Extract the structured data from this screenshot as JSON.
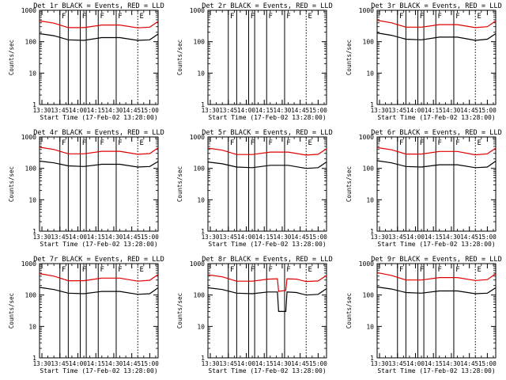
{
  "colors": {
    "events": "#000000",
    "lld": "#e00000",
    "axis": "#000000",
    "background": "#ffffff"
  },
  "markers": [
    "F",
    "F",
    "F",
    "F",
    "E"
  ],
  "chart_data": [
    {
      "type": "line",
      "title": "Det 1r BLACK = Events, RED = LLD",
      "xlabel": "Start Time (17-Feb-02 13:28:00)",
      "ylabel": "Counts/sec",
      "yscale": "log",
      "ylim": [
        1,
        1000
      ],
      "xlim": [
        "13:28",
        "15:07"
      ],
      "x_ticks": [
        "13:30",
        "13:45",
        "14:00",
        "14:15",
        "14:30",
        "14:45",
        "15:00"
      ],
      "y_ticks": [
        "1",
        "10",
        "100",
        "1000"
      ],
      "vlines_solid": [
        "13:45",
        "13:52",
        "14:02",
        "14:07",
        "14:17",
        "14:32"
      ],
      "vlines_dotted": [
        "14:50"
      ],
      "series": [
        {
          "name": "BLACK = Events",
          "x": [
            "13:28",
            "13:40",
            "13:52",
            "14:05",
            "14:20",
            "14:35",
            "14:50",
            "15:00",
            "15:07"
          ],
          "y": [
            180,
            155,
            115,
            110,
            135,
            135,
            110,
            115,
            175
          ]
        },
        {
          "name": "RED = LLD",
          "x": [
            "13:28",
            "13:40",
            "13:52",
            "14:05",
            "14:20",
            "14:35",
            "14:50",
            "15:00",
            "15:07"
          ],
          "y": [
            460,
            390,
            280,
            280,
            340,
            340,
            275,
            290,
            440
          ]
        }
      ]
    },
    {
      "type": "line",
      "title": "Det 2r BLACK = Events, RED = LLD",
      "xlabel": "Start Time (17-Feb-02 13:28:00)",
      "ylabel": "Counts/sec",
      "yscale": "log",
      "ylim": [
        1,
        1000
      ],
      "xlim": [
        "13:28",
        "15:07"
      ],
      "x_ticks": [
        "13:30",
        "13:45",
        "14:00",
        "14:15",
        "14:30",
        "14:45",
        "15:00"
      ],
      "y_ticks": [
        "1",
        "10",
        "100",
        "1000"
      ],
      "vlines_solid": [
        "13:45",
        "13:52",
        "14:02",
        "14:07",
        "14:17",
        "14:32"
      ],
      "vlines_dotted": [
        "14:50"
      ],
      "series": []
    },
    {
      "type": "line",
      "title": "Det 3r BLACK = Events, RED = LLD",
      "xlabel": "Start Time (17-Feb-02 13:28:00)",
      "ylabel": "Counts/sec",
      "yscale": "log",
      "ylim": [
        1,
        1000
      ],
      "xlim": [
        "13:28",
        "15:07"
      ],
      "x_ticks": [
        "13:30",
        "13:45",
        "14:00",
        "14:15",
        "14:30",
        "14:45",
        "15:00"
      ],
      "y_ticks": [
        "1",
        "10",
        "100",
        "1000"
      ],
      "vlines_solid": [
        "13:45",
        "13:52",
        "14:02",
        "14:07",
        "14:17",
        "14:32"
      ],
      "vlines_dotted": [
        "14:50"
      ],
      "series": [
        {
          "name": "BLACK = Events",
          "x": [
            "13:28",
            "13:40",
            "13:52",
            "14:05",
            "14:20",
            "14:35",
            "14:50",
            "15:00",
            "15:07"
          ],
          "y": [
            190,
            160,
            120,
            115,
            140,
            140,
            110,
            120,
            180
          ]
        },
        {
          "name": "RED = LLD",
          "x": [
            "13:28",
            "13:40",
            "13:52",
            "14:05",
            "14:20",
            "14:35",
            "14:50",
            "15:00",
            "15:07"
          ],
          "y": [
            480,
            400,
            290,
            290,
            350,
            350,
            280,
            300,
            460
          ]
        }
      ]
    },
    {
      "type": "line",
      "title": "Det 4r BLACK = Events, RED = LLD",
      "xlabel": "Start Time (17-Feb-02 13:28:00)",
      "ylabel": "Counts/sec",
      "yscale": "log",
      "ylim": [
        1,
        1000
      ],
      "xlim": [
        "13:28",
        "15:07"
      ],
      "x_ticks": [
        "13:30",
        "13:45",
        "14:00",
        "14:15",
        "14:30",
        "14:45",
        "15:00"
      ],
      "y_ticks": [
        "1",
        "10",
        "100",
        "1000"
      ],
      "vlines_solid": [
        "13:45",
        "13:52",
        "14:02",
        "14:07",
        "14:17",
        "14:32"
      ],
      "vlines_dotted": [
        "14:50"
      ],
      "series": [
        {
          "name": "BLACK = Events",
          "x": [
            "13:28",
            "13:40",
            "13:52",
            "14:05",
            "14:20",
            "14:35",
            "14:50",
            "15:00",
            "15:07"
          ],
          "y": [
            170,
            150,
            120,
            115,
            135,
            135,
            110,
            115,
            165
          ]
        },
        {
          "name": "RED = LLD",
          "x": [
            "13:28",
            "13:40",
            "13:52",
            "14:05",
            "14:20",
            "14:35",
            "14:50",
            "15:00",
            "15:07"
          ],
          "y": [
            470,
            400,
            290,
            290,
            350,
            350,
            280,
            295,
            450
          ]
        }
      ]
    },
    {
      "type": "line",
      "title": "Det 5r BLACK = Events, RED = LLD",
      "xlabel": "Start Time (17-Feb-02 13:28:00)",
      "ylabel": "Counts/sec",
      "yscale": "log",
      "ylim": [
        1,
        1000
      ],
      "xlim": [
        "13:28",
        "15:07"
      ],
      "x_ticks": [
        "13:30",
        "13:45",
        "14:00",
        "14:15",
        "14:30",
        "14:45",
        "15:00"
      ],
      "y_ticks": [
        "1",
        "10",
        "100",
        "1000"
      ],
      "vlines_solid": [
        "13:45",
        "13:52",
        "14:02",
        "14:07",
        "14:17",
        "14:32"
      ],
      "vlines_dotted": [
        "14:50"
      ],
      "series": [
        {
          "name": "BLACK = Events",
          "x": [
            "13:28",
            "13:40",
            "13:52",
            "14:05",
            "14:20",
            "14:35",
            "14:50",
            "15:00",
            "15:07"
          ],
          "y": [
            160,
            140,
            110,
            105,
            125,
            125,
            100,
            105,
            160
          ]
        },
        {
          "name": "RED = LLD",
          "x": [
            "13:28",
            "13:40",
            "13:52",
            "14:05",
            "14:20",
            "14:35",
            "14:50",
            "15:00",
            "15:07"
          ],
          "y": [
            440,
            380,
            275,
            275,
            330,
            330,
            265,
            280,
            420
          ]
        }
      ]
    },
    {
      "type": "line",
      "title": "Det 6r BLACK = Events, RED = LLD",
      "xlabel": "Start Time (17-Feb-02 13:28:00)",
      "ylabel": "Counts/sec",
      "yscale": "log",
      "ylim": [
        1,
        1000
      ],
      "xlim": [
        "13:28",
        "15:07"
      ],
      "x_ticks": [
        "13:30",
        "13:45",
        "14:00",
        "14:15",
        "14:30",
        "14:45",
        "15:00"
      ],
      "y_ticks": [
        "1",
        "10",
        "100",
        "1000"
      ],
      "vlines_solid": [
        "13:45",
        "13:52",
        "14:02",
        "14:07",
        "14:17",
        "14:32"
      ],
      "vlines_dotted": [
        "14:50"
      ],
      "series": [
        {
          "name": "BLACK = Events",
          "x": [
            "13:28",
            "13:40",
            "13:52",
            "14:05",
            "14:20",
            "14:35",
            "14:50",
            "15:00",
            "15:07"
          ],
          "y": [
            175,
            150,
            115,
            110,
            130,
            130,
            105,
            110,
            170
          ]
        },
        {
          "name": "RED = LLD",
          "x": [
            "13:28",
            "13:40",
            "13:52",
            "14:05",
            "14:20",
            "14:35",
            "14:50",
            "15:00",
            "15:07"
          ],
          "y": [
            460,
            390,
            285,
            285,
            345,
            345,
            270,
            290,
            440
          ]
        }
      ]
    },
    {
      "type": "line",
      "title": "Det 7r BLACK = Events, RED = LLD",
      "xlabel": "Start Time (17-Feb-02 13:28:00)",
      "ylabel": "Counts/sec",
      "yscale": "log",
      "ylim": [
        1,
        1000
      ],
      "xlim": [
        "13:28",
        "15:07"
      ],
      "x_ticks": [
        "13:30",
        "13:45",
        "14:00",
        "14:15",
        "14:30",
        "14:45",
        "15:00"
      ],
      "y_ticks": [
        "1",
        "10",
        "100",
        "1000"
      ],
      "vlines_solid": [
        "13:45",
        "13:52",
        "14:02",
        "14:07",
        "14:17",
        "14:32"
      ],
      "vlines_dotted": [
        "14:50"
      ],
      "series": [
        {
          "name": "BLACK = Events",
          "x": [
            "13:28",
            "13:40",
            "13:52",
            "14:05",
            "14:20",
            "14:35",
            "14:50",
            "15:00",
            "15:07"
          ],
          "y": [
            175,
            150,
            115,
            110,
            130,
            130,
            105,
            110,
            170
          ]
        },
        {
          "name": "RED = LLD",
          "x": [
            "13:28",
            "13:40",
            "13:52",
            "14:05",
            "14:20",
            "14:35",
            "14:50",
            "15:00",
            "15:07"
          ],
          "y": [
            480,
            400,
            285,
            285,
            345,
            345,
            275,
            295,
            450
          ]
        }
      ]
    },
    {
      "type": "line",
      "title": "Det 8r BLACK = Events, RED = LLD",
      "xlabel": "Start Time (17-Feb-02 13:28:00)",
      "ylabel": "Counts/sec",
      "yscale": "log",
      "ylim": [
        1,
        1000
      ],
      "xlim": [
        "13:28",
        "15:07"
      ],
      "x_ticks": [
        "13:30",
        "13:45",
        "14:00",
        "14:15",
        "14:30",
        "14:45",
        "15:00"
      ],
      "y_ticks": [
        "1",
        "10",
        "100",
        "1000"
      ],
      "vlines_solid": [
        "13:45",
        "13:52",
        "14:02",
        "14:07",
        "14:17",
        "14:32"
      ],
      "vlines_dotted": [
        "14:50"
      ],
      "series": [
        {
          "name": "BLACK = Events",
          "x": [
            "13:28",
            "13:40",
            "13:52",
            "14:05",
            "14:18",
            "14:26",
            "14:27",
            "14:33",
            "14:34",
            "14:42",
            "14:50",
            "15:00",
            "15:07"
          ],
          "y": [
            170,
            150,
            115,
            110,
            125,
            125,
            30,
            30,
            125,
            120,
            100,
            105,
            160
          ]
        },
        {
          "name": "RED = LLD",
          "x": [
            "13:28",
            "13:40",
            "13:52",
            "14:05",
            "14:18",
            "14:26",
            "14:27",
            "14:33",
            "14:34",
            "14:42",
            "14:50",
            "15:00",
            "15:07"
          ],
          "y": [
            440,
            380,
            275,
            275,
            320,
            330,
            130,
            140,
            330,
            320,
            270,
            280,
            420
          ]
        }
      ]
    },
    {
      "type": "line",
      "title": "Det 9r BLACK = Events, RED = LLD",
      "xlabel": "Start Time (17-Feb-02 13:28:00)",
      "ylabel": "Counts/sec",
      "yscale": "log",
      "ylim": [
        1,
        1000
      ],
      "xlim": [
        "13:28",
        "15:07"
      ],
      "x_ticks": [
        "13:30",
        "13:45",
        "14:00",
        "14:15",
        "14:30",
        "14:45",
        "15:00"
      ],
      "y_ticks": [
        "1",
        "10",
        "100",
        "1000"
      ],
      "vlines_solid": [
        "13:45",
        "13:52",
        "14:02",
        "14:07",
        "14:17",
        "14:32"
      ],
      "vlines_dotted": [
        "14:50"
      ],
      "series": [
        {
          "name": "BLACK = Events",
          "x": [
            "13:28",
            "13:40",
            "13:52",
            "14:05",
            "14:20",
            "14:35",
            "14:50",
            "15:00",
            "15:07"
          ],
          "y": [
            180,
            155,
            120,
            115,
            135,
            135,
            110,
            115,
            170
          ]
        },
        {
          "name": "RED = LLD",
          "x": [
            "13:28",
            "13:40",
            "13:52",
            "14:05",
            "14:20",
            "14:35",
            "14:50",
            "15:00",
            "15:07"
          ],
          "y": [
            520,
            420,
            300,
            300,
            360,
            360,
            290,
            310,
            480
          ]
        }
      ]
    }
  ]
}
